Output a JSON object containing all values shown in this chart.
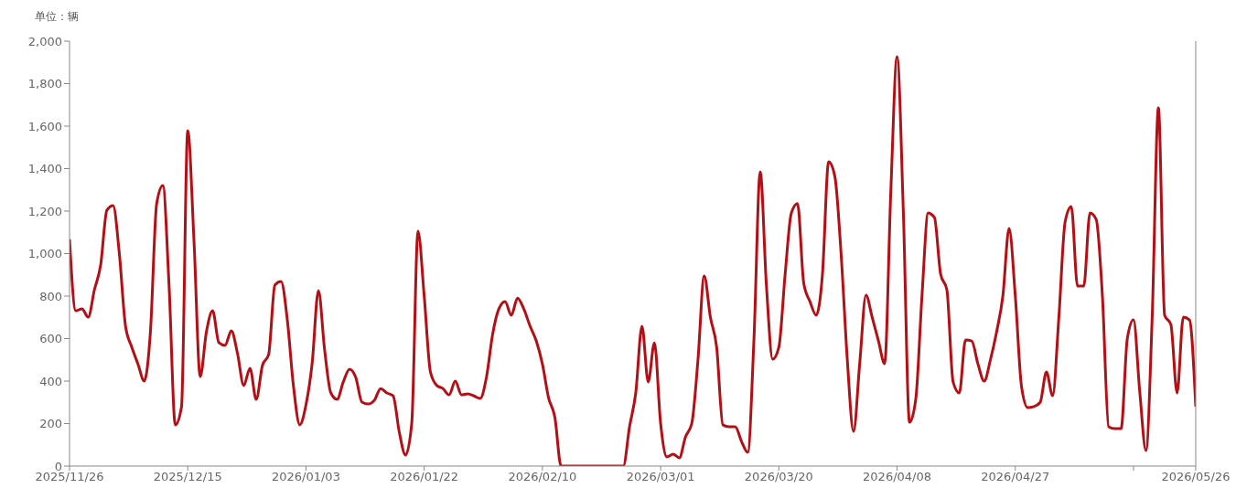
{
  "chart_data": {
    "type": "line",
    "annotations": [
      "单位：辆"
    ],
    "x": [
      "2025-11-26",
      "2025-11-27",
      "2025-11-28",
      "2025-11-29",
      "2025-11-30",
      "2025-12-01",
      "2025-12-02",
      "2025-12-03",
      "2025-12-04",
      "2025-12-05",
      "2025-12-06",
      "2025-12-07",
      "2025-12-08",
      "2025-12-09",
      "2025-12-10",
      "2025-12-11",
      "2025-12-12",
      "2025-12-13",
      "2025-12-14",
      "2025-12-15",
      "2025-12-16",
      "2025-12-17",
      "2025-12-18",
      "2025-12-19",
      "2025-12-20",
      "2025-12-21",
      "2025-12-22",
      "2025-12-23",
      "2025-12-24",
      "2025-12-25",
      "2025-12-26",
      "2025-12-27",
      "2025-12-28",
      "2025-12-29",
      "2025-12-30",
      "2025-12-31",
      "2026-01-01",
      "2026-01-02",
      "2026-01-03",
      "2026-01-04",
      "2026-01-05",
      "2026-01-06",
      "2026-01-07",
      "2026-01-08",
      "2026-01-09",
      "2026-01-10",
      "2026-01-11",
      "2026-01-12",
      "2026-01-13",
      "2026-01-14",
      "2026-01-15",
      "2026-01-16",
      "2026-01-17",
      "2026-01-18",
      "2026-01-19",
      "2026-01-20",
      "2026-01-21",
      "2026-01-22",
      "2026-01-23",
      "2026-01-24",
      "2026-01-25",
      "2026-01-26",
      "2026-01-27",
      "2026-01-28",
      "2026-01-29",
      "2026-01-30",
      "2026-01-31",
      "2026-02-01",
      "2026-02-02",
      "2026-02-03",
      "2026-02-04",
      "2026-02-05",
      "2026-02-06",
      "2026-02-07",
      "2026-02-08",
      "2026-02-09",
      "2026-02-10",
      "2026-02-11",
      "2026-02-12",
      "2026-02-13",
      "2026-02-14",
      "2026-02-15",
      "2026-02-16",
      "2026-02-17",
      "2026-02-18",
      "2026-02-19",
      "2026-02-20",
      "2026-02-21",
      "2026-02-22",
      "2026-02-23",
      "2026-02-24",
      "2026-02-25",
      "2026-02-26",
      "2026-02-27",
      "2026-02-28",
      "2026-03-01",
      "2026-03-02",
      "2026-03-03",
      "2026-03-04",
      "2026-03-05",
      "2026-03-06",
      "2026-03-07",
      "2026-03-08",
      "2026-03-09",
      "2026-03-10",
      "2026-03-11",
      "2026-03-12",
      "2026-03-13",
      "2026-03-14",
      "2026-03-15",
      "2026-03-16",
      "2026-03-17",
      "2026-03-18",
      "2026-03-19",
      "2026-03-20",
      "2026-03-21",
      "2026-03-22",
      "2026-03-23",
      "2026-03-24",
      "2026-03-25",
      "2026-03-26",
      "2026-03-27",
      "2026-03-28",
      "2026-03-29",
      "2026-03-30",
      "2026-03-31",
      "2026-04-01",
      "2026-04-02",
      "2026-04-03",
      "2026-04-04",
      "2026-04-05",
      "2026-04-06",
      "2026-04-07",
      "2026-04-08",
      "2026-04-09",
      "2026-04-10",
      "2026-04-11",
      "2026-04-12",
      "2026-04-13",
      "2026-04-14",
      "2026-04-15",
      "2026-04-16",
      "2026-04-17",
      "2026-04-18",
      "2026-04-19",
      "2026-04-20",
      "2026-04-21",
      "2026-04-22",
      "2026-04-23",
      "2026-04-24",
      "2026-04-25",
      "2026-04-26",
      "2026-04-27",
      "2026-04-28",
      "2026-04-29",
      "2026-04-30",
      "2026-05-01",
      "2026-05-02",
      "2026-05-03",
      "2026-05-04",
      "2026-05-05",
      "2026-05-06",
      "2026-05-07",
      "2026-05-08",
      "2026-05-09",
      "2026-05-10",
      "2026-05-11",
      "2026-05-12",
      "2026-05-13",
      "2026-05-14",
      "2026-05-15",
      "2026-05-16",
      "2026-05-17",
      "2026-05-18",
      "2026-05-19",
      "2026-05-20",
      "2026-05-21",
      "2026-05-22",
      "2026-05-23",
      "2026-05-24",
      "2026-05-25",
      "2026-05-26"
    ],
    "series": [
      {
        "color": "#b50f16",
        "values": [
          1067,
          731,
          740,
          701,
          830,
          946,
          1204,
          1226,
          1002,
          658,
          560,
          480,
          400,
          632,
          1234,
          1320,
          847,
          194,
          280,
          1578,
          1062,
          421,
          632,
          731,
          581,
          568,
          637,
          529,
          379,
          460,
          314,
          473,
          525,
          852,
          869,
          688,
          374,
          194,
          288,
          486,
          826,
          546,
          344,
          314,
          396,
          456,
          417,
          301,
          292,
          310,
          365,
          344,
          331,
          159,
          52,
          202,
          1105,
          800,
          443,
          380,
          365,
          335,
          400,
          335,
          340,
          330,
          318,
          417,
          620,
          740,
          774,
          710,
          790,
          740,
          660,
          590,
          480,
          320,
          230,
          0,
          0,
          0,
          0,
          0,
          0,
          0,
          0,
          0,
          0,
          0,
          185,
          344,
          658,
          396,
          580,
          200,
          43,
          56,
          39,
          138,
          200,
          500,
          895,
          700,
          560,
          194,
          185,
          185,
          116,
          64,
          600,
          1385,
          850,
          503,
          560,
          900,
          1190,
          1235,
          860,
          774,
          710,
          900,
          1432,
          1363,
          1000,
          500,
          163,
          486,
          804,
          700,
          590,
          482,
          1300,
          1927,
          1204,
          206,
          314,
          800,
          1191,
          1170,
          903,
          830,
          396,
          344,
          594,
          589,
          480,
          400,
          500,
          632,
          800,
          1118,
          800,
          374,
          275,
          280,
          300,
          443,
          331,
          700,
          1148,
          1221,
          847,
          847,
          1191,
          1161,
          800,
          185,
          176,
          176,
          600,
          688,
          350,
          73,
          700,
          1686,
          710,
          667,
          344,
          701,
          688,
          280
        ]
      }
    ],
    "xlim": [
      "2025-11-26",
      "2026-05-26"
    ],
    "xticks": [
      {
        "value": "2025-11-26",
        "label": "2025/11/26"
      },
      {
        "value": "2025-12-15",
        "label": "2025/12/15"
      },
      {
        "value": "2026-01-03",
        "label": "2026/01/03"
      },
      {
        "value": "2026-01-22",
        "label": "2026/01/22"
      },
      {
        "value": "2026-02-10",
        "label": "2026/02/10"
      },
      {
        "value": "2026-03-01",
        "label": "2026/03/01"
      },
      {
        "value": "2026-03-20",
        "label": "2026/03/20"
      },
      {
        "value": "2026-04-08",
        "label": "2026/04/08"
      },
      {
        "value": "2026-04-27",
        "label": "2026/04/27"
      },
      {
        "value": "2026-05-16",
        "label": null
      },
      {
        "value": "2026-05-26",
        "label": "2026/05/26"
      }
    ],
    "ylim": [
      0,
      2000
    ],
    "yticks": [
      0,
      {
        "value": 200,
        "label": "200"
      },
      {
        "value": 400,
        "label": "400"
      },
      {
        "value": 600,
        "label": "600"
      },
      {
        "value": 800,
        "label": "800"
      },
      {
        "value": 1000,
        "label": "1,000"
      },
      {
        "value": 1200,
        "label": "1,200"
      },
      {
        "value": 1400,
        "label": "1,400"
      },
      {
        "value": 1600,
        "label": "1,600"
      },
      {
        "value": 1800,
        "label": "1,800"
      },
      {
        "value": 2000,
        "label": "2,000"
      }
    ],
    "grid": false,
    "legend": false,
    "marker": "none",
    "line_style": "solid"
  }
}
